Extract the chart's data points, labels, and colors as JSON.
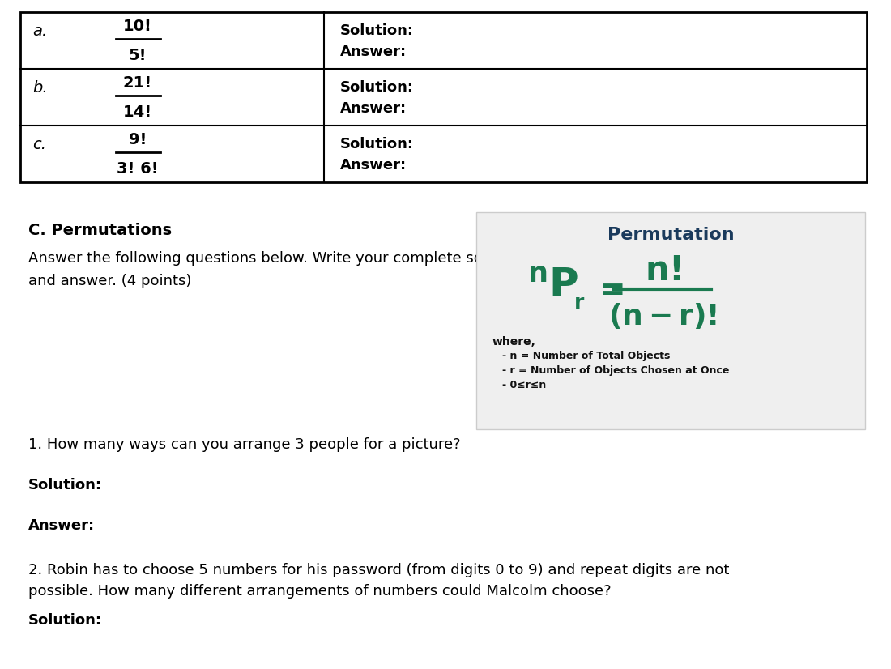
{
  "bg_color": "#ffffff",
  "table_rows": [
    {
      "label": "a.",
      "numerator": "10!",
      "denominator": "5!"
    },
    {
      "label": "b.",
      "numerator": "21!",
      "denominator": "14!"
    },
    {
      "label": "c.",
      "numerator": "9!",
      "denominator": "3! 6!"
    }
  ],
  "section_c_title": "C. Permutations",
  "section_c_intro": "Answer the following questions below. Write your complete solution\nand answer. (4 points)",
  "box_title": "Permutation",
  "box_title_color": "#1a3a5c",
  "box_formula_color": "#1a7a50",
  "box_bg_color": "#efefef",
  "box_where": "where,",
  "box_bullet1": "n = Number of Total Objects",
  "box_bullet2": "r = Number of Objects Chosen at Once",
  "box_bullet3": "0≤r≤n",
  "q1": "1. How many ways can you arrange 3 people for a picture?",
  "q1_solution": "Solution:",
  "q1_answer": "Answer:",
  "q2": "2. Robin has to choose 5 numbers for his password (from digits 0 to 9) and repeat digits are not\npossible. How many different arrangements of numbers could Malcolm choose?",
  "q2_solution": "Solution:"
}
